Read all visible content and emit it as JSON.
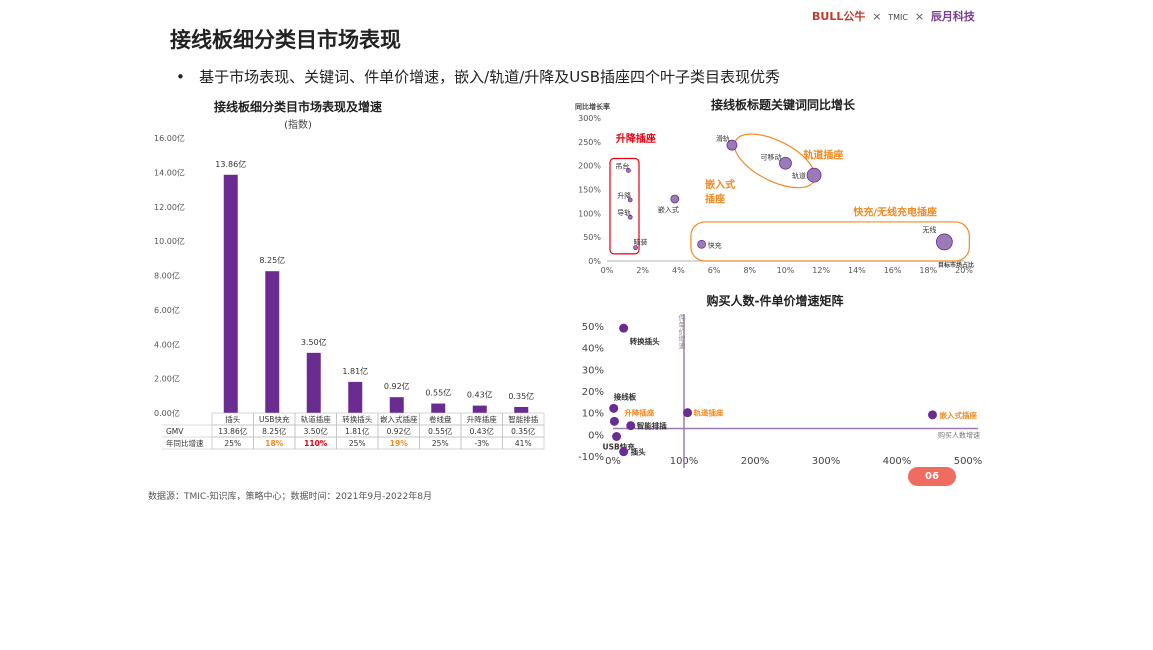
{
  "header": {
    "title": "接线板细分类目市场表现",
    "bullet": "基于市场表现、关键词、件单价增速，嵌入/轨道/升降及USB插座四个叶子类目表现优秀",
    "logos": {
      "bull": "BULL公牛",
      "times": "×",
      "tmic": "TMIC",
      "chenyue": "辰月科技"
    }
  },
  "footer": {
    "source": "数据源：TMIC-知识库，策略中心；数据时间：2021年9月-2022年8月",
    "page": "06"
  },
  "colors": {
    "purple": "#6b2c91",
    "orange": "#f08a24",
    "red": "#e60012",
    "light_purple": "#9b7bb5"
  },
  "chart_data": [
    {
      "type": "bar",
      "title": "接线板细分类目市场表现及增速",
      "subtitle": "(指数)",
      "categories": [
        "插头",
        "USB快充",
        "轨道插座",
        "转换插头",
        "嵌入式插座",
        "卷线盘",
        "升降插座",
        "智能排插"
      ],
      "values": [
        13.86,
        8.25,
        3.5,
        1.81,
        0.92,
        0.55,
        0.43,
        0.35
      ],
      "value_labels": [
        "13.86亿",
        "8.25亿",
        "3.50亿",
        "1.81亿",
        "0.92亿",
        "0.55亿",
        "0.43亿",
        "0.35亿"
      ],
      "ylim": [
        0,
        16
      ],
      "yticks": [
        "0.00亿",
        "2.00亿",
        "4.00亿",
        "6.00亿",
        "8.00亿",
        "10.00亿",
        "12.00亿",
        "14.00亿",
        "16.00亿"
      ],
      "table": {
        "rows": [
          {
            "label": "GMV",
            "cells": [
              "13.86亿",
              "8.25亿",
              "3.50亿",
              "1.81亿",
              "0.92亿",
              "0.55亿",
              "0.43亿",
              "0.35亿"
            ]
          },
          {
            "label": "年同比增速",
            "cells": [
              "25%",
              "18%",
              "110%",
              "25%",
              "19%",
              "25%",
              "-3%",
              "41%"
            ],
            "highlight": [
              "",
              "orange",
              "red",
              "",
              "orange",
              "",
              "",
              ""
            ]
          }
        ]
      }
    },
    {
      "type": "scatter",
      "title": "接线板标题关键词同比增长",
      "ylabel": "同比增长率",
      "xlabel": "目标市场占比",
      "xlim": [
        0,
        20
      ],
      "ylim": [
        0,
        300
      ],
      "xticks": [
        "0%",
        "2%",
        "4%",
        "6%",
        "8%",
        "10%",
        "12%",
        "14%",
        "16%",
        "18%",
        "20%"
      ],
      "yticks": [
        "0%",
        "50%",
        "100%",
        "150%",
        "200%",
        "250%",
        "300%"
      ],
      "points": [
        {
          "name": "吊台",
          "x": 1.2,
          "y": 190,
          "size": 2
        },
        {
          "name": "升降",
          "x": 1.3,
          "y": 128,
          "size": 2
        },
        {
          "name": "导轨",
          "x": 1.3,
          "y": 92,
          "size": 2
        },
        {
          "name": "暗装",
          "x": 1.6,
          "y": 28,
          "size": 2
        },
        {
          "name": "嵌入式",
          "x": 3.8,
          "y": 130,
          "size": 4
        },
        {
          "name": "滑轨",
          "x": 7.0,
          "y": 243,
          "size": 5
        },
        {
          "name": "可移动",
          "x": 10.0,
          "y": 205,
          "size": 6
        },
        {
          "name": "轨道",
          "x": 11.6,
          "y": 180,
          "size": 7
        },
        {
          "name": "快充",
          "x": 5.3,
          "y": 35,
          "size": 4
        },
        {
          "name": "无线",
          "x": 18.9,
          "y": 40,
          "size": 8
        }
      ],
      "groups": [
        "升降插座",
        "嵌入式插座",
        "轨道插座",
        "快充/无线充电插座"
      ],
      "group_labels": {
        "lift": "升降插座",
        "embed1": "嵌入式",
        "embed2": "插座",
        "rail": "轨道插座",
        "fast": "快充/无线充电插座"
      }
    },
    {
      "type": "scatter",
      "title": "购买人数-件单价增速矩阵",
      "ylabel": "件单价增速",
      "xlabel": "购买人数增速",
      "xlim": [
        0,
        500
      ],
      "ylim": [
        -10,
        50
      ],
      "xticks": [
        "0%",
        "100%",
        "200%",
        "300%",
        "400%",
        "500%"
      ],
      "yticks": [
        "-10%",
        "0%",
        "10%",
        "20%",
        "30%",
        "40%",
        "50%"
      ],
      "points": [
        {
          "name": "转换插头",
          "x": 15,
          "y": 49,
          "color": "purple"
        },
        {
          "name": "接线板",
          "x": 1,
          "y": 12,
          "color": "purple"
        },
        {
          "name": "升降插座",
          "x": 2,
          "y": 6,
          "color": "purple"
        },
        {
          "name": "智能排插",
          "x": 25,
          "y": 4,
          "color": "purple"
        },
        {
          "name": "USB快充",
          "x": 5,
          "y": -1,
          "color": "purple"
        },
        {
          "name": "插头",
          "x": 15,
          "y": -8,
          "color": "purple"
        },
        {
          "name": "轨道插座",
          "x": 105,
          "y": 10,
          "color": "purple"
        },
        {
          "name": "嵌入式插座",
          "x": 450,
          "y": 9,
          "color": "purple"
        }
      ],
      "highlight_labels": [
        "升降插座",
        "轨道插座",
        "嵌入式插座"
      ],
      "ref_x": 100,
      "ref_y": 5
    }
  ]
}
